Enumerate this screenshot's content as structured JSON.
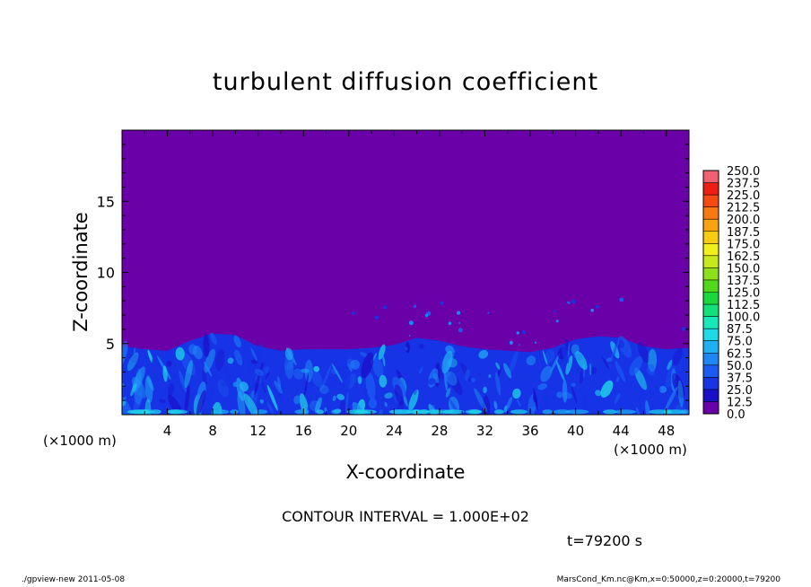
{
  "chart_data": {
    "type": "heatmap",
    "title": "turbulent diffusion coefficient",
    "xlabel": "X-coordinate",
    "ylabel": "Z-coordinate",
    "x_unit": "(×1000 m)",
    "xlim": [
      0,
      50
    ],
    "ylim": [
      0,
      20
    ],
    "x_ticks": [
      4,
      8,
      12,
      16,
      20,
      24,
      28,
      32,
      36,
      40,
      44,
      48
    ],
    "y_ticks": [
      5,
      10,
      15
    ],
    "colorbar": {
      "levels": [
        "0.0",
        "12.5",
        "25.0",
        "37.5",
        "50.0",
        "62.5",
        "75.0",
        "87.5",
        "100.0",
        "112.5",
        "125.0",
        "137.5",
        "150.0",
        "162.5",
        "175.0",
        "187.5",
        "200.0",
        "212.5",
        "225.0",
        "237.5",
        "250.0"
      ],
      "colors": [
        "#6a00a8",
        "#1a0fc8",
        "#1633e6",
        "#1a5cf2",
        "#1f86f6",
        "#20b0f2",
        "#1fd8e8",
        "#16e8b8",
        "#14e07a",
        "#1ad83c",
        "#50d81a",
        "#8ee01c",
        "#c6e81c",
        "#f0f01c",
        "#f8cc12",
        "#f8a410",
        "#f87812",
        "#f44a12",
        "#ee1e14",
        "#f06070"
      ]
    },
    "boundary_layer_top_km": [
      {
        "x": 0,
        "z": 4.8
      },
      {
        "x": 2,
        "z": 4.6
      },
      {
        "x": 4,
        "z": 4.5
      },
      {
        "x": 6,
        "z": 5.2
      },
      {
        "x": 8,
        "z": 5.7
      },
      {
        "x": 10,
        "z": 5.6
      },
      {
        "x": 12,
        "z": 4.8
      },
      {
        "x": 14,
        "z": 4.5
      },
      {
        "x": 16,
        "z": 4.6
      },
      {
        "x": 18,
        "z": 4.6
      },
      {
        "x": 20,
        "z": 4.6
      },
      {
        "x": 22,
        "z": 4.7
      },
      {
        "x": 24,
        "z": 4.9
      },
      {
        "x": 26,
        "z": 5.4
      },
      {
        "x": 28,
        "z": 5.2
      },
      {
        "x": 30,
        "z": 4.8
      },
      {
        "x": 32,
        "z": 4.6
      },
      {
        "x": 34,
        "z": 4.5
      },
      {
        "x": 36,
        "z": 4.4
      },
      {
        "x": 38,
        "z": 4.7
      },
      {
        "x": 40,
        "z": 5.3
      },
      {
        "x": 42,
        "z": 5.5
      },
      {
        "x": 44,
        "z": 5.4
      },
      {
        "x": 46,
        "z": 4.8
      },
      {
        "x": 48,
        "z": 4.6
      },
      {
        "x": 50,
        "z": 4.7
      }
    ]
  },
  "annotations": {
    "x_unit_left": "(×1000 m)",
    "x_unit_right": "(×1000 m)",
    "contour_interval": "CONTOUR INTERVAL = 1.000E+02",
    "time": "t=79200 s",
    "footer_left": "./gpview-new   2011-05-08",
    "footer_right": "MarsCond_Km.nc@Km,x=0:50000,z=0:20000,t=79200"
  }
}
